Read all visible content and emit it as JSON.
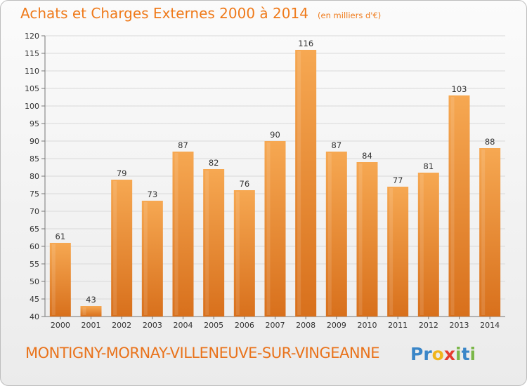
{
  "chart_data": {
    "type": "bar",
    "title": "Achats et Charges Externes 2000 à 2014",
    "unit_label": "(en milliers d'€)",
    "categories": [
      "2000",
      "2001",
      "2002",
      "2003",
      "2004",
      "2005",
      "2006",
      "2007",
      "2008",
      "2009",
      "2010",
      "2011",
      "2012",
      "2013",
      "2014"
    ],
    "values": [
      61,
      43,
      79,
      73,
      87,
      82,
      76,
      90,
      116,
      87,
      84,
      77,
      81,
      103,
      88
    ],
    "ylim": [
      40,
      120
    ],
    "yticks": [
      40,
      45,
      50,
      55,
      60,
      65,
      70,
      75,
      80,
      85,
      90,
      95,
      100,
      105,
      110,
      115,
      120
    ],
    "grid": true,
    "legend": "none",
    "bar_color_top": "#f6a852",
    "bar_color_bottom": "#d8701c"
  },
  "footer": {
    "commune": "MONTIGNY-MORNAY-VILLENEUVE-SUR-VINGEANNE",
    "logo_letters": [
      {
        "ch": "P",
        "color": "#3a86c8"
      },
      {
        "ch": "r",
        "color": "#3a86c8"
      },
      {
        "ch": "o",
        "color": "#f0b51c"
      },
      {
        "ch": "x",
        "color": "#e53b2f"
      },
      {
        "ch": "i",
        "color": "#7ab648"
      },
      {
        "ch": "t",
        "color": "#3a86c8"
      },
      {
        "ch": "i",
        "color": "#7ab648"
      }
    ]
  },
  "colors": {
    "title": "#ef7a1a",
    "axis_text": "#333333",
    "grid": "#d9d9d9"
  }
}
